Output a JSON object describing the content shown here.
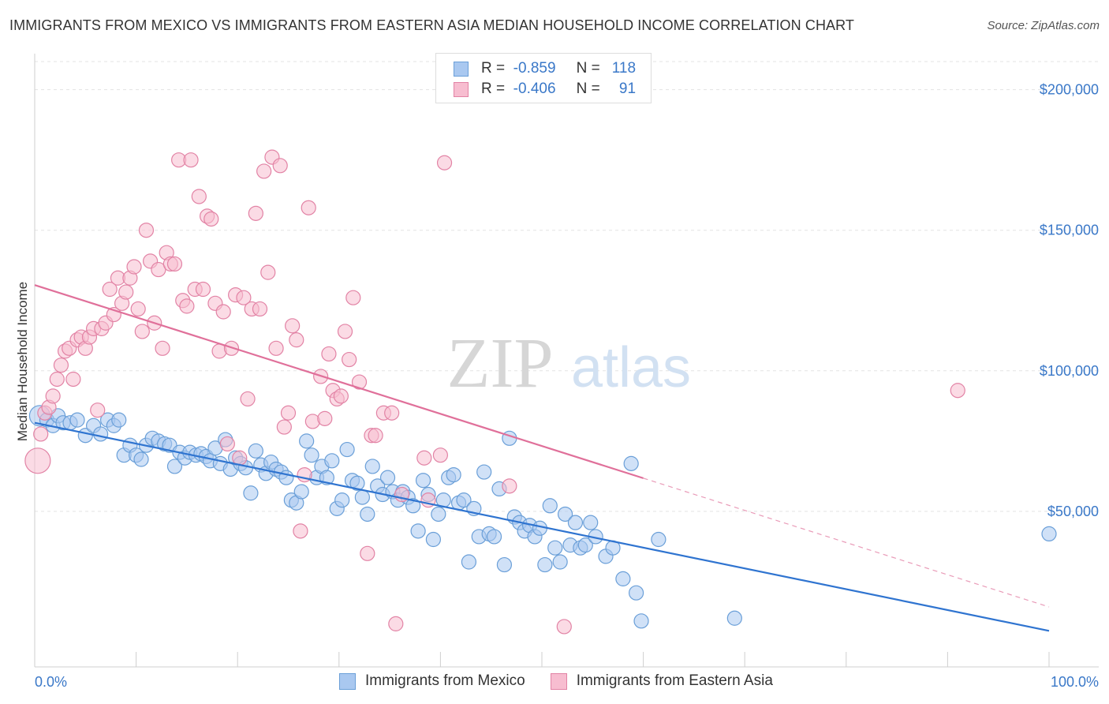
{
  "title": "IMMIGRANTS FROM MEXICO VS IMMIGRANTS FROM EASTERN ASIA MEDIAN HOUSEHOLD INCOME CORRELATION CHART",
  "source": "Source: ZipAtlas.com",
  "watermark": {
    "zip": "ZIP",
    "atlas": "atlas"
  },
  "legend": {
    "rows": [
      {
        "r_label": "R =",
        "r_value": "-0.859",
        "n_label": "N =",
        "n_value": "118",
        "color": "#a9c8f0",
        "border": "#6a9fd8"
      },
      {
        "r_label": "R =",
        "r_value": "-0.406",
        "n_label": "N =",
        "n_value": "91",
        "color": "#f7bdd0",
        "border": "#e283a5"
      }
    ]
  },
  "chart_data": {
    "type": "scatter",
    "title": "",
    "xlabel": "",
    "ylabel": "Median Household Income",
    "xlim": [
      0,
      100
    ],
    "ylim": [
      0,
      210000
    ],
    "x_tick_labels": [
      "0.0%",
      "100.0%"
    ],
    "y_ticks": [
      50000,
      100000,
      150000,
      200000
    ],
    "y_tick_labels": [
      "$50,000",
      "$100,000",
      "$150,000",
      "$200,000"
    ],
    "grid": true,
    "legend_placement": "bottom",
    "series": [
      {
        "name": "Immigrants from Mexico",
        "color": "#a9c8f0",
        "stroke": "#6a9fd8",
        "trend_color": "#2f74d0",
        "trend": {
          "x0": 0,
          "y0": 81500,
          "x1": 100,
          "y1": 7500,
          "dash_from": null
        },
        "points": [
          [
            0.5,
            84000
          ],
          [
            1.2,
            82500
          ],
          [
            1.8,
            80500
          ],
          [
            2.3,
            84000
          ],
          [
            2.8,
            81500
          ],
          [
            3.5,
            81500
          ],
          [
            4.2,
            82500
          ],
          [
            5.0,
            77000
          ],
          [
            5.8,
            80500
          ],
          [
            6.5,
            77500
          ],
          [
            7.2,
            82500
          ],
          [
            7.8,
            80500
          ],
          [
            8.3,
            82500
          ],
          [
            8.8,
            70000
          ],
          [
            9.4,
            73500
          ],
          [
            10.0,
            70000
          ],
          [
            10.5,
            68500
          ],
          [
            11.0,
            73500
          ],
          [
            11.6,
            76000
          ],
          [
            12.2,
            75000
          ],
          [
            12.8,
            74000
          ],
          [
            13.3,
            73500
          ],
          [
            13.8,
            66000
          ],
          [
            14.3,
            71000
          ],
          [
            14.8,
            69000
          ],
          [
            15.3,
            71000
          ],
          [
            15.9,
            70000
          ],
          [
            16.4,
            70500
          ],
          [
            16.9,
            69500
          ],
          [
            17.3,
            68000
          ],
          [
            17.8,
            72500
          ],
          [
            18.3,
            67000
          ],
          [
            18.8,
            75500
          ],
          [
            19.3,
            65000
          ],
          [
            19.8,
            69000
          ],
          [
            20.3,
            67000
          ],
          [
            20.8,
            65500
          ],
          [
            21.3,
            56500
          ],
          [
            21.8,
            71500
          ],
          [
            22.3,
            66500
          ],
          [
            22.8,
            63500
          ],
          [
            23.3,
            67500
          ],
          [
            23.8,
            65000
          ],
          [
            24.3,
            64000
          ],
          [
            24.8,
            62000
          ],
          [
            25.3,
            54000
          ],
          [
            25.8,
            53000
          ],
          [
            26.3,
            57000
          ],
          [
            26.8,
            75000
          ],
          [
            27.3,
            70000
          ],
          [
            27.8,
            62000
          ],
          [
            28.3,
            66000
          ],
          [
            28.8,
            62000
          ],
          [
            29.3,
            68000
          ],
          [
            29.8,
            51000
          ],
          [
            30.3,
            54000
          ],
          [
            30.8,
            72000
          ],
          [
            31.3,
            61000
          ],
          [
            31.8,
            60000
          ],
          [
            32.3,
            55000
          ],
          [
            32.8,
            49000
          ],
          [
            33.3,
            66000
          ],
          [
            33.8,
            59000
          ],
          [
            34.3,
            56000
          ],
          [
            34.8,
            62000
          ],
          [
            35.3,
            57000
          ],
          [
            35.8,
            54000
          ],
          [
            36.3,
            57000
          ],
          [
            36.8,
            55000
          ],
          [
            37.3,
            52000
          ],
          [
            37.8,
            43000
          ],
          [
            38.3,
            61000
          ],
          [
            38.8,
            56000
          ],
          [
            39.3,
            40000
          ],
          [
            39.8,
            49000
          ],
          [
            40.3,
            54000
          ],
          [
            40.8,
            62000
          ],
          [
            41.3,
            63000
          ],
          [
            41.8,
            53000
          ],
          [
            42.3,
            54000
          ],
          [
            42.8,
            32000
          ],
          [
            43.3,
            51000
          ],
          [
            43.8,
            41000
          ],
          [
            44.3,
            64000
          ],
          [
            44.8,
            42000
          ],
          [
            45.3,
            41000
          ],
          [
            45.8,
            58000
          ],
          [
            46.3,
            31000
          ],
          [
            46.8,
            76000
          ],
          [
            47.3,
            48000
          ],
          [
            47.8,
            46000
          ],
          [
            48.3,
            43000
          ],
          [
            48.8,
            45000
          ],
          [
            49.3,
            41000
          ],
          [
            49.8,
            44000
          ],
          [
            50.3,
            31000
          ],
          [
            50.8,
            52000
          ],
          [
            51.3,
            37000
          ],
          [
            51.8,
            32000
          ],
          [
            52.3,
            49000
          ],
          [
            52.8,
            38000
          ],
          [
            53.3,
            46000
          ],
          [
            53.8,
            37000
          ],
          [
            54.3,
            38000
          ],
          [
            54.8,
            46000
          ],
          [
            55.3,
            41000
          ],
          [
            56.3,
            34000
          ],
          [
            57.0,
            37000
          ],
          [
            58.0,
            26000
          ],
          [
            58.8,
            67000
          ],
          [
            59.3,
            21000
          ],
          [
            59.8,
            11000
          ],
          [
            61.5,
            40000
          ],
          [
            69.0,
            12000
          ],
          [
            100.0,
            42000
          ]
        ]
      },
      {
        "name": "Immigrants from Eastern Asia",
        "color": "#f7bdd0",
        "stroke": "#e283a5",
        "trend_color": "#e0709a",
        "trend": {
          "x0": 0,
          "y0": 130500,
          "x1": 100,
          "y1": 16000,
          "dash_from": 60
        },
        "points": [
          [
            0.3,
            68000
          ],
          [
            0.6,
            77500
          ],
          [
            1.0,
            85000
          ],
          [
            1.4,
            87000
          ],
          [
            1.8,
            91000
          ],
          [
            2.2,
            97000
          ],
          [
            2.6,
            102000
          ],
          [
            3.0,
            107000
          ],
          [
            3.4,
            108000
          ],
          [
            3.8,
            97000
          ],
          [
            4.2,
            111000
          ],
          [
            4.6,
            112000
          ],
          [
            5.0,
            108000
          ],
          [
            5.4,
            112000
          ],
          [
            5.8,
            115000
          ],
          [
            6.2,
            86000
          ],
          [
            6.6,
            115000
          ],
          [
            7.0,
            117000
          ],
          [
            7.4,
            129000
          ],
          [
            7.8,
            120000
          ],
          [
            8.2,
            133000
          ],
          [
            8.6,
            124000
          ],
          [
            9.0,
            128000
          ],
          [
            9.4,
            133000
          ],
          [
            9.8,
            137000
          ],
          [
            10.2,
            122000
          ],
          [
            10.6,
            114000
          ],
          [
            11.0,
            150000
          ],
          [
            11.4,
            139000
          ],
          [
            11.8,
            117000
          ],
          [
            12.2,
            136000
          ],
          [
            12.6,
            108000
          ],
          [
            13.0,
            142000
          ],
          [
            13.4,
            138000
          ],
          [
            13.8,
            138000
          ],
          [
            14.2,
            175000
          ],
          [
            14.6,
            125000
          ],
          [
            15.0,
            123000
          ],
          [
            15.4,
            175000
          ],
          [
            15.8,
            129000
          ],
          [
            16.2,
            162000
          ],
          [
            16.6,
            129000
          ],
          [
            17.0,
            155000
          ],
          [
            17.4,
            154000
          ],
          [
            17.8,
            124000
          ],
          [
            18.2,
            107000
          ],
          [
            18.6,
            121000
          ],
          [
            19.0,
            74000
          ],
          [
            19.4,
            108000
          ],
          [
            19.8,
            127000
          ],
          [
            20.2,
            69000
          ],
          [
            20.6,
            126000
          ],
          [
            21.0,
            90000
          ],
          [
            21.4,
            122000
          ],
          [
            21.8,
            156000
          ],
          [
            22.2,
            122000
          ],
          [
            22.6,
            171000
          ],
          [
            23.0,
            135000
          ],
          [
            23.4,
            176000
          ],
          [
            23.8,
            108000
          ],
          [
            24.2,
            173000
          ],
          [
            24.6,
            80000
          ],
          [
            25.0,
            85000
          ],
          [
            25.4,
            116000
          ],
          [
            25.8,
            111000
          ],
          [
            26.2,
            43000
          ],
          [
            26.6,
            63000
          ],
          [
            27.0,
            158000
          ],
          [
            27.4,
            82000
          ],
          [
            28.2,
            98000
          ],
          [
            28.6,
            83000
          ],
          [
            29.0,
            106000
          ],
          [
            29.4,
            93000
          ],
          [
            29.8,
            90000
          ],
          [
            30.2,
            91000
          ],
          [
            30.6,
            114000
          ],
          [
            31.0,
            104000
          ],
          [
            31.4,
            126000
          ],
          [
            32.0,
            96000
          ],
          [
            32.8,
            35000
          ],
          [
            33.2,
            77000
          ],
          [
            33.6,
            77000
          ],
          [
            34.4,
            85000
          ],
          [
            35.2,
            85000
          ],
          [
            35.6,
            10000
          ],
          [
            36.2,
            56000
          ],
          [
            38.4,
            69000
          ],
          [
            38.8,
            54000
          ],
          [
            40.0,
            70000
          ],
          [
            40.4,
            174000
          ],
          [
            46.8,
            59000
          ],
          [
            52.2,
            9000
          ],
          [
            91.0,
            93000
          ]
        ]
      }
    ]
  }
}
